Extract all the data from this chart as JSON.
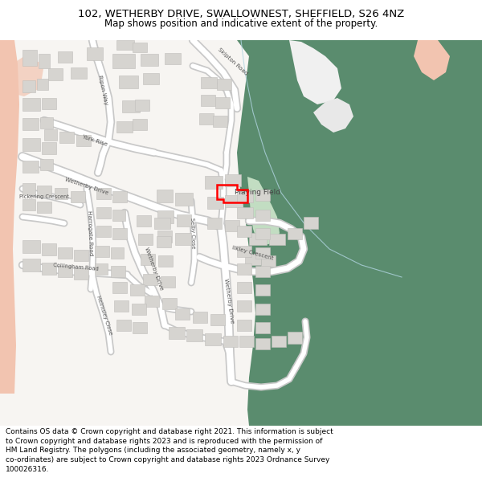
{
  "title_line1": "102, WETHERBY DRIVE, SWALLOWNEST, SHEFFIELD, S26 4NZ",
  "title_line2": "Map shows position and indicative extent of the property.",
  "footer_text": "Contains OS data © Crown copyright and database right 2021. This information is subject to Crown copyright and database rights 2023 and is reproduced with the permission of HM Land Registry. The polygons (including the associated geometry, namely x, y co-ordinates) are subject to Crown copyright and database rights 2023 Ordnance Survey 100026316.",
  "title_fontsize": 9.5,
  "subtitle_fontsize": 8.5,
  "footer_fontsize": 6.5,
  "fig_width": 6.0,
  "fig_height": 6.25,
  "dpi": 100,
  "bg_color": "#ffffff",
  "map_bg": "#f7f5f2",
  "building_color": "#d6d4d0",
  "building_edge_color": "#c0bebb",
  "green_dark": "#5a8c6e",
  "green_light": "#c2ddc2",
  "pink_color": "#f2c4b0",
  "red_plot": "#ff0000",
  "road_white": "#ffffff",
  "road_edge": "#c8c8c8",
  "water_line": "#b0d4e0"
}
